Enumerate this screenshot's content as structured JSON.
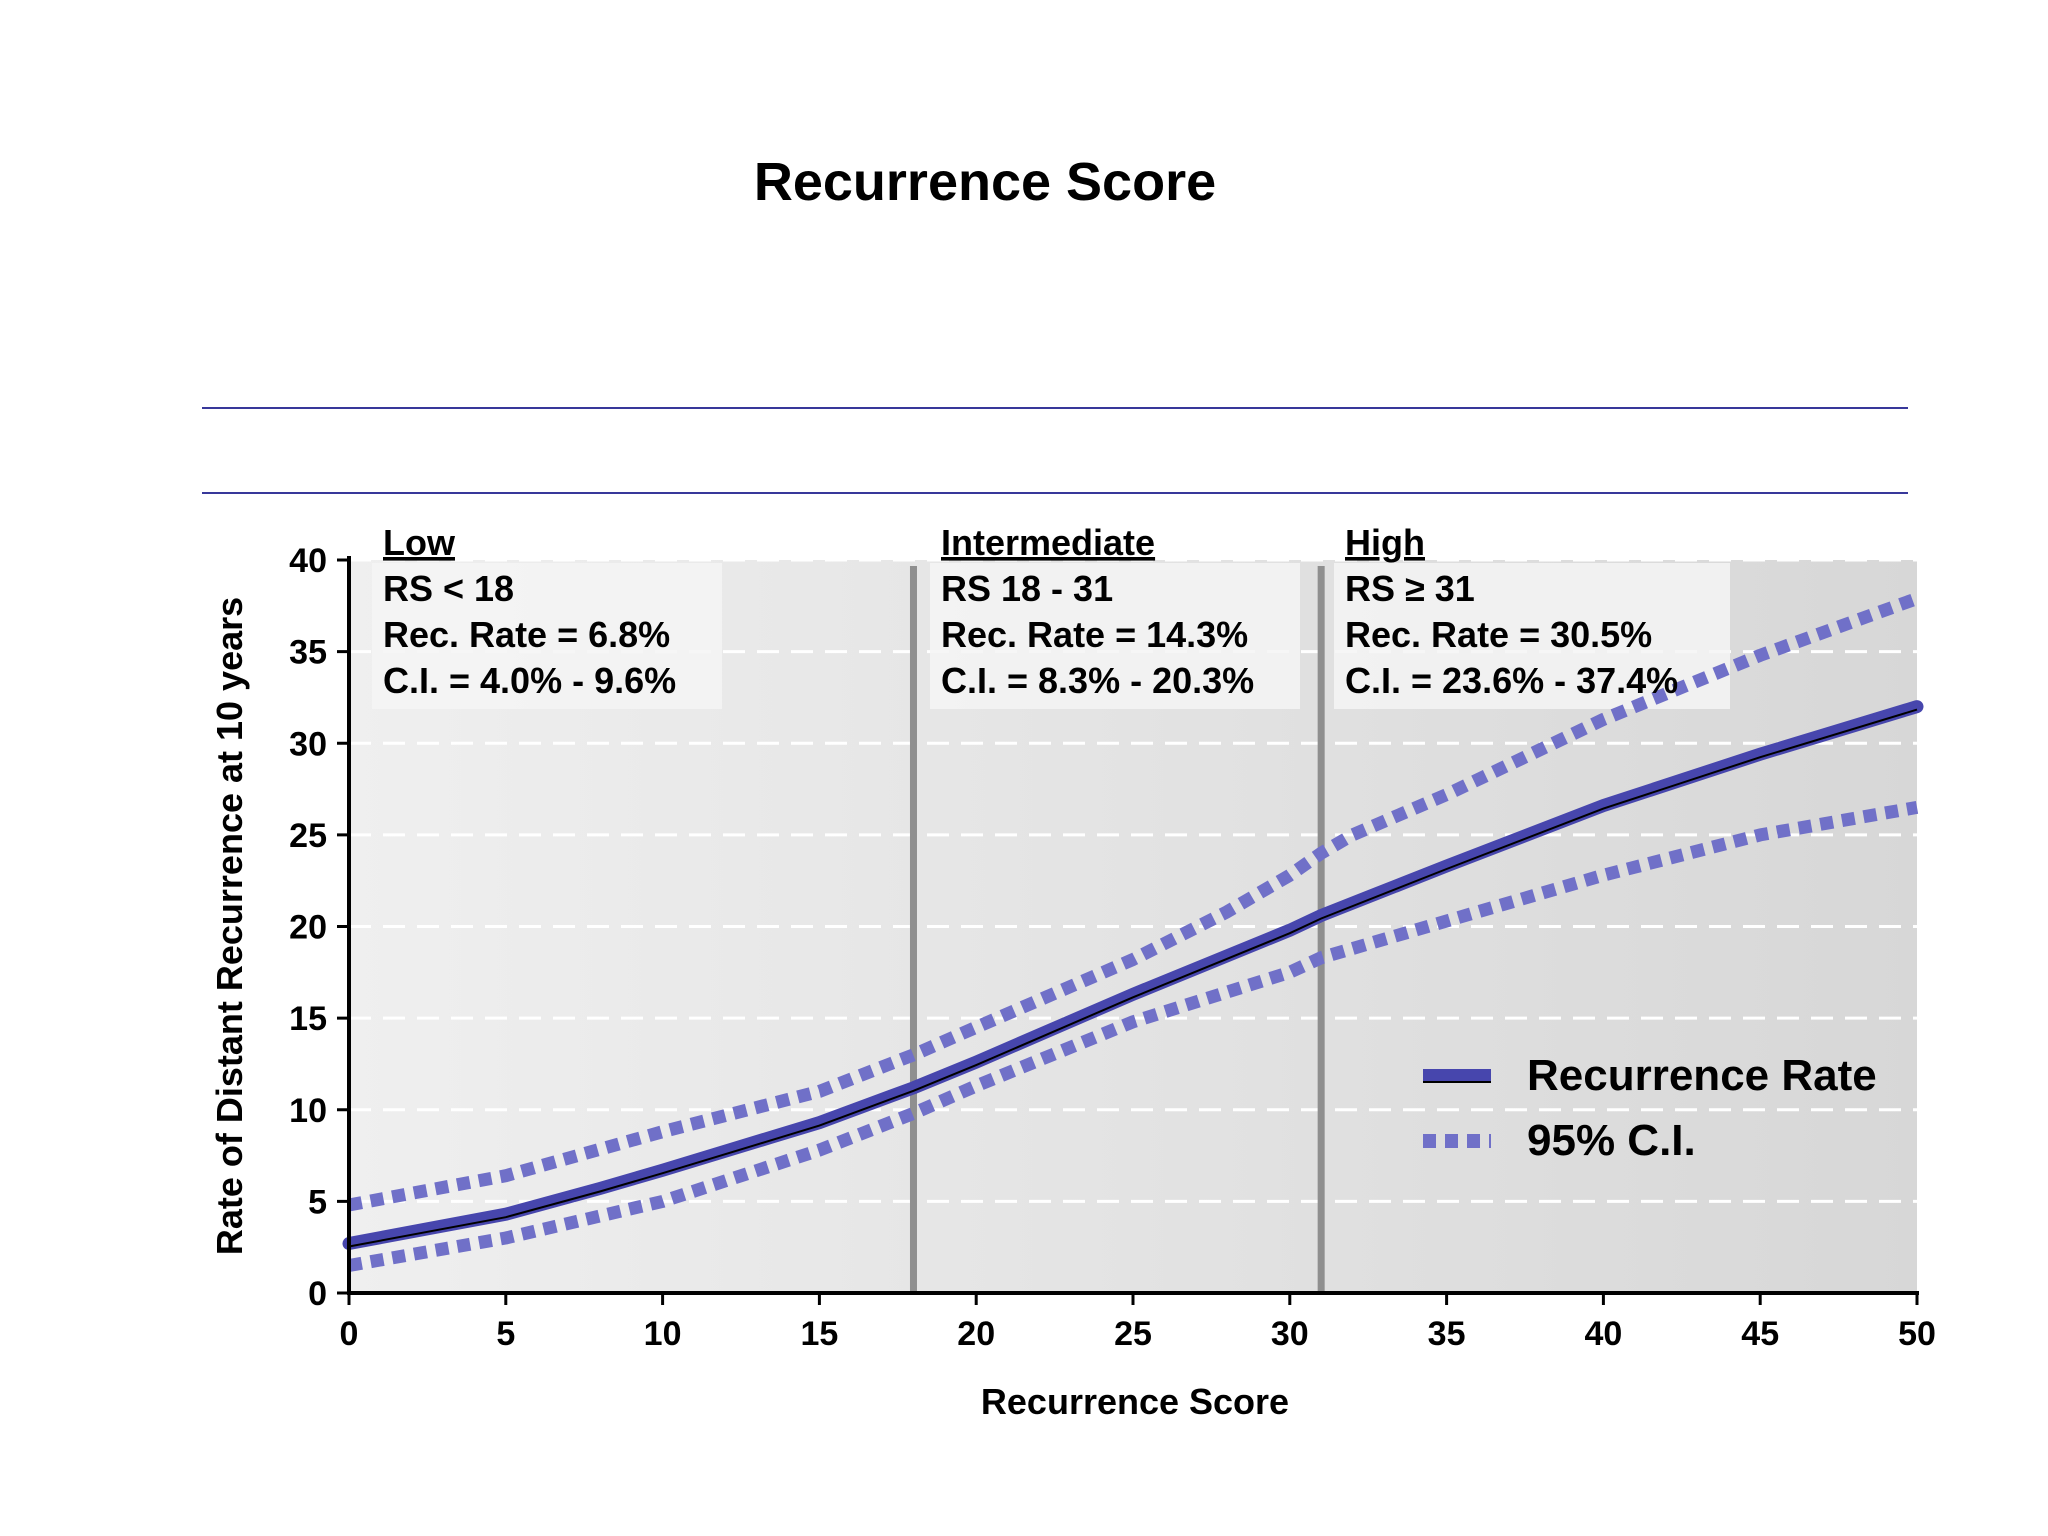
{
  "slide_title": "Recurrence Score",
  "colors": {
    "series": "#4746ad",
    "ci": "#7070c8",
    "divider_lines": "#38389a",
    "region_line": "#8f8f8f",
    "plot_bg_light": "#efefef",
    "plot_bg_dark": "#d7d7d7",
    "gridline": "#ffffff"
  },
  "chart_data": {
    "type": "line",
    "title": "",
    "xlabel": "Recurrence Score",
    "ylabel": "Rate of Distant Recurrence at 10 years",
    "xlim": [
      0,
      50
    ],
    "ylim": [
      0,
      40
    ],
    "x_ticks": [
      "0",
      "5",
      "10",
      "15",
      "20",
      "25",
      "30",
      "35",
      "40",
      "45",
      "50"
    ],
    "y_ticks": [
      "0",
      "5",
      "10",
      "15",
      "20",
      "25",
      "30",
      "35",
      "40"
    ],
    "grid": "horizontal dashed",
    "legend_position": "bottom-right",
    "series": [
      {
        "name": "Recurrence Rate",
        "style": "solid",
        "x": [
          0,
          5,
          8,
          10,
          15,
          18,
          20,
          25,
          30,
          31,
          35,
          40,
          45,
          50
        ],
        "y": [
          2.7,
          4.3,
          5.7,
          6.7,
          9.3,
          11.2,
          12.6,
          16.3,
          19.8,
          20.6,
          23.3,
          26.6,
          29.4,
          32.0
        ]
      },
      {
        "name": "95% C.I.",
        "style": "dotted",
        "x": [
          0,
          5,
          10,
          15,
          18,
          20,
          25,
          28,
          30,
          31,
          32,
          35,
          40,
          45,
          50
        ],
        "y": [
          4.8,
          6.4,
          8.8,
          11.0,
          13.0,
          14.5,
          18.2,
          20.8,
          22.8,
          24.0,
          25.0,
          27.2,
          31.3,
          34.8,
          37.9
        ]
      },
      {
        "name": "",
        "style": "dotted",
        "x": [
          0,
          5,
          10,
          15,
          18,
          20,
          25,
          30,
          31,
          35,
          40,
          45,
          50
        ],
        "y": [
          1.5,
          3.0,
          5.0,
          7.8,
          9.8,
          11.3,
          14.8,
          17.5,
          18.3,
          20.3,
          22.8,
          25.0,
          26.5
        ]
      }
    ],
    "region_boundaries": [
      18,
      31
    ],
    "annotations": [
      {
        "heading": "Low",
        "lines": [
          "RS < 18",
          "Rec. Rate = 6.8%",
          "C.I. = 4.0% - 9.6%"
        ]
      },
      {
        "heading": "Intermediate",
        "lines": [
          "RS 18 - 31",
          "Rec. Rate = 14.3%",
          "C.I. = 8.3% - 20.3%"
        ]
      },
      {
        "heading": "High",
        "lines": [
          "RS ≥ 31",
          "Rec. Rate = 30.5%",
          "C.I. = 23.6% - 37.4%"
        ]
      }
    ],
    "legend": [
      {
        "label": "Recurrence Rate",
        "style": "solid"
      },
      {
        "label": "95% C.I.",
        "style": "dotted"
      }
    ]
  }
}
